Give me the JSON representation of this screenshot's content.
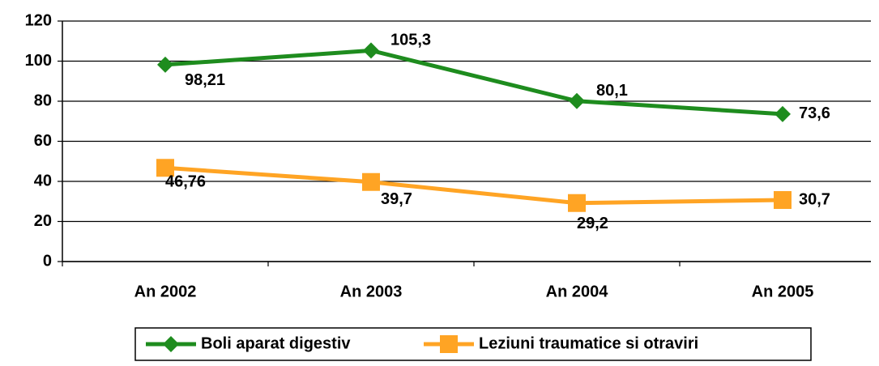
{
  "chart_data": {
    "type": "line",
    "categories": [
      "An 2002",
      "An 2003",
      "An 2004",
      "An 2005"
    ],
    "series": [
      {
        "name": "Boli aparat digestiv",
        "color": "#1e8c1e",
        "marker": "diamond",
        "values": [
          98.21,
          105.3,
          80.1,
          73.6
        ],
        "value_labels": [
          "98,21",
          "105,3",
          "80,1",
          "73,6"
        ]
      },
      {
        "name": "Leziuni traumatice si otraviri",
        "color": "#ffa424",
        "marker": "square",
        "values": [
          46.76,
          39.7,
          29.2,
          30.7
        ],
        "value_labels": [
          "46,76",
          "39,7",
          "29,2",
          "30,7"
        ]
      }
    ],
    "ylim": [
      0,
      120
    ],
    "yticks": [
      0,
      20,
      40,
      60,
      80,
      100,
      120
    ],
    "grid": true,
    "legend": "bottom"
  }
}
